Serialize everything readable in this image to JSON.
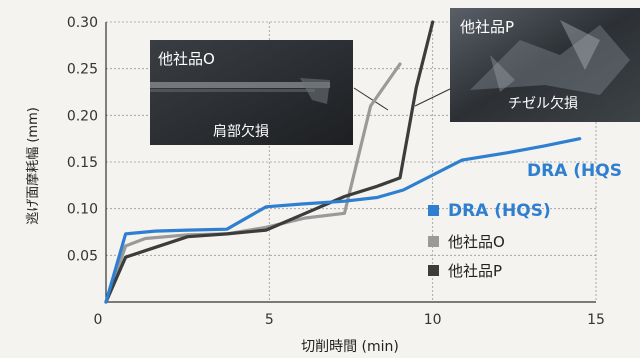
{
  "chart_data": {
    "type": "line",
    "xlabel": "切削時間 (min)",
    "ylabel": "逃げ面摩耗幅 (mm)",
    "xlim": [
      0,
      15
    ],
    "ylim": [
      0,
      0.3
    ],
    "x_ticks": [
      "0",
      "5",
      "10",
      "15"
    ],
    "y_ticks": [
      "0.05",
      "0.10",
      "0.15",
      "0.20",
      "0.25",
      "0.30"
    ],
    "grid": true,
    "legend_position": "lower-right",
    "series": [
      {
        "name": "DRA (HQS)",
        "color": "#2f7fd1",
        "x": [
          0,
          0.6,
          1.5,
          2.5,
          3.7,
          4.9,
          6.0,
          7.3,
          8.3,
          9.1,
          10.9,
          12.3,
          13.4,
          14.5
        ],
        "y": [
          0,
          0.073,
          0.076,
          0.077,
          0.078,
          0.102,
          0.105,
          0.108,
          0.112,
          0.12,
          0.152,
          0.16,
          0.167,
          0.175
        ]
      },
      {
        "name": "他社品O",
        "color": "#9a9a9a",
        "x": [
          0,
          0.6,
          1.2,
          2.5,
          3.7,
          4.9,
          6.1,
          7.3,
          8.1,
          9.0
        ],
        "y": [
          0,
          0.06,
          0.068,
          0.072,
          0.073,
          0.08,
          0.09,
          0.095,
          0.21,
          0.255
        ]
      },
      {
        "name": "他社品P",
        "color": "#3c3c3c",
        "x": [
          0,
          0.6,
          1.2,
          2.5,
          3.7,
          4.9,
          6.1,
          7.3,
          8.3,
          9.0,
          9.5,
          10.0
        ],
        "y": [
          0,
          0.048,
          0.055,
          0.07,
          0.073,
          0.077,
          0.095,
          0.113,
          0.124,
          0.133,
          0.23,
          0.3
        ]
      }
    ],
    "inline_label": "DRA (HQS",
    "photos": [
      {
        "name": "photo-other-o",
        "title": "他社品O",
        "caption": "肩部欠損"
      },
      {
        "name": "photo-other-p",
        "title": "他社品P",
        "caption": "チゼル欠損"
      }
    ]
  }
}
